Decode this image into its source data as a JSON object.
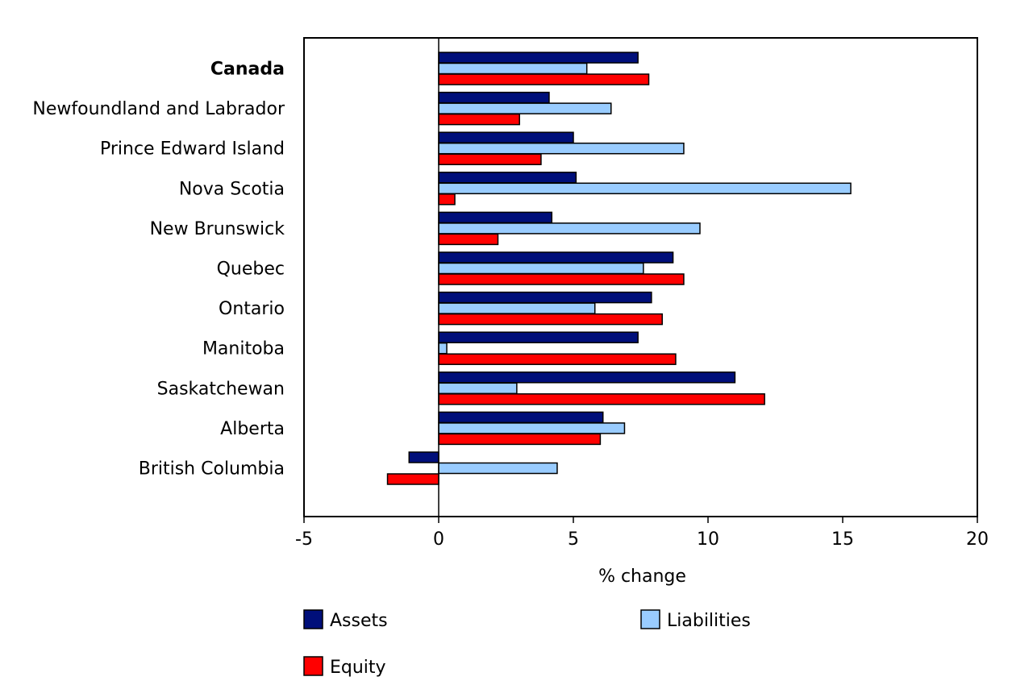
{
  "chart_data": {
    "type": "bar",
    "orientation": "horizontal",
    "categories": [
      "Canada",
      "Newfoundland and Labrador",
      "Prince Edward Island",
      "Nova Scotia",
      "New Brunswick",
      "Quebec",
      "Ontario",
      "Manitoba",
      "Saskatchewan",
      "Alberta",
      "British Columbia"
    ],
    "bold_categories": [
      "Canada"
    ],
    "series": [
      {
        "name": "Assets",
        "color": "#000f7a",
        "values": [
          7.4,
          4.1,
          5.0,
          5.1,
          4.2,
          8.7,
          7.9,
          7.4,
          11.0,
          6.1,
          -1.1
        ]
      },
      {
        "name": "Liabilities",
        "color": "#99ccff",
        "values": [
          5.5,
          6.4,
          9.1,
          15.3,
          9.7,
          7.6,
          5.8,
          0.3,
          2.9,
          6.9,
          4.4
        ]
      },
      {
        "name": "Equity",
        "color": "#ff0000",
        "values": [
          7.8,
          3.0,
          3.8,
          0.6,
          2.2,
          9.1,
          8.3,
          8.8,
          12.1,
          6.0,
          -1.9
        ]
      }
    ],
    "xlabel": "% change",
    "ylabel": "",
    "xlim": [
      -5,
      20
    ],
    "xticks": [
      -5,
      0,
      5,
      10,
      15,
      20
    ],
    "grid": false,
    "legend_position": "bottom"
  }
}
